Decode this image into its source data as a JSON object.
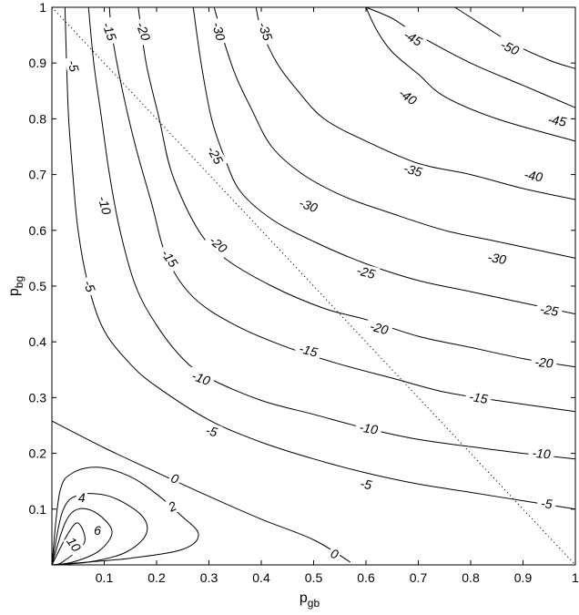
{
  "chart_data": {
    "type": "contour",
    "xlabel": "p",
    "xlabel_sub": "gb",
    "ylabel": "p",
    "ylabel_sub": "bg",
    "xlim": [
      0,
      1
    ],
    "ylim": [
      0,
      1
    ],
    "xticks": [
      {
        "v": 0.1,
        "label": "0.1"
      },
      {
        "v": 0.2,
        "label": "0.2"
      },
      {
        "v": 0.3,
        "label": "0.3"
      },
      {
        "v": 0.4,
        "label": "0.4"
      },
      {
        "v": 0.5,
        "label": "0.5"
      },
      {
        "v": 0.6,
        "label": "0.6"
      },
      {
        "v": 0.7,
        "label": "0.7"
      },
      {
        "v": 0.8,
        "label": "0.8"
      },
      {
        "v": 0.9,
        "label": "0.9"
      },
      {
        "v": 1.0,
        "label": "1"
      }
    ],
    "yticks": [
      {
        "v": 0.1,
        "label": "0.1"
      },
      {
        "v": 0.2,
        "label": "0.2"
      },
      {
        "v": 0.3,
        "label": "0.3"
      },
      {
        "v": 0.4,
        "label": "0.4"
      },
      {
        "v": 0.5,
        "label": "0.5"
      },
      {
        "v": 0.6,
        "label": "0.6"
      },
      {
        "v": 0.7,
        "label": "0.7"
      },
      {
        "v": 0.8,
        "label": "0.8"
      },
      {
        "v": 0.9,
        "label": "0.9"
      },
      {
        "v": 1.0,
        "label": "1"
      }
    ],
    "reference_line": {
      "style": "dotted",
      "points": [
        [
          0,
          1
        ],
        [
          1,
          0
        ]
      ]
    },
    "contours": [
      {
        "level": 10,
        "points": [
          [
            0.0,
            0.0
          ],
          [
            0.03,
            0.055
          ],
          [
            0.05,
            0.075
          ],
          [
            0.062,
            0.04
          ],
          [
            0.02,
            0.005
          ],
          [
            0.0,
            0.0
          ]
        ],
        "labels": [
          {
            "text": "10",
            "x": 0.042,
            "y": 0.037,
            "angle": -55
          }
        ]
      },
      {
        "level": 6,
        "points": [
          [
            0.0,
            0.0
          ],
          [
            0.025,
            0.075
          ],
          [
            0.05,
            0.1
          ],
          [
            0.085,
            0.093
          ],
          [
            0.115,
            0.06
          ],
          [
            0.09,
            0.025
          ],
          [
            0.04,
            0.005
          ],
          [
            0.0,
            0.0
          ]
        ],
        "labels": [
          {
            "text": "6",
            "x": 0.087,
            "y": 0.062,
            "angle": 0
          }
        ]
      },
      {
        "level": 4,
        "points": [
          [
            0.0,
            0.0
          ],
          [
            0.02,
            0.095
          ],
          [
            0.05,
            0.125
          ],
          [
            0.11,
            0.123
          ],
          [
            0.17,
            0.09
          ],
          [
            0.18,
            0.055
          ],
          [
            0.14,
            0.022
          ],
          [
            0.07,
            0.005
          ],
          [
            0.0,
            0.0
          ]
        ],
        "labels": [
          {
            "text": "4",
            "x": 0.057,
            "y": 0.121,
            "angle": 0
          }
        ]
      },
      {
        "level": 2,
        "points": [
          [
            0.0,
            0.0
          ],
          [
            0.015,
            0.13
          ],
          [
            0.04,
            0.165
          ],
          [
            0.09,
            0.175
          ],
          [
            0.15,
            0.158
          ],
          [
            0.2,
            0.127
          ],
          [
            0.245,
            0.09
          ],
          [
            0.28,
            0.055
          ],
          [
            0.25,
            0.028
          ],
          [
            0.15,
            0.012
          ],
          [
            0.04,
            0.003
          ],
          [
            0.0,
            0.0
          ]
        ],
        "labels": [
          {
            "text": "2",
            "x": 0.23,
            "y": 0.105,
            "angle": 25
          }
        ]
      },
      {
        "level": 0,
        "points": [
          [
            0.0,
            0.258
          ],
          [
            0.1,
            0.21
          ],
          [
            0.2,
            0.166
          ],
          [
            0.3,
            0.123
          ],
          [
            0.4,
            0.082
          ],
          [
            0.5,
            0.045
          ],
          [
            0.57,
            0.005
          ]
        ],
        "labels": [
          {
            "text": "0",
            "x": 0.235,
            "y": 0.155,
            "angle": -20
          },
          {
            "text": "0",
            "x": 0.54,
            "y": 0.02,
            "angle": -20
          }
        ]
      },
      {
        "level": -5,
        "points": [
          [
            0.025,
            1.0
          ],
          [
            0.028,
            0.9
          ],
          [
            0.032,
            0.8
          ],
          [
            0.04,
            0.7
          ],
          [
            0.05,
            0.6
          ],
          [
            0.07,
            0.5
          ],
          [
            0.1,
            0.42
          ],
          [
            0.15,
            0.36
          ],
          [
            0.2,
            0.32
          ],
          [
            0.3,
            0.26
          ],
          [
            0.4,
            0.22
          ],
          [
            0.5,
            0.19
          ],
          [
            0.6,
            0.165
          ],
          [
            0.7,
            0.145
          ],
          [
            0.8,
            0.13
          ],
          [
            0.9,
            0.115
          ],
          [
            1.0,
            0.1
          ]
        ],
        "labels": [
          {
            "text": "-5",
            "x": 0.041,
            "y": 0.895,
            "angle": -75
          },
          {
            "text": "-5",
            "x": 0.072,
            "y": 0.5,
            "angle": -70
          },
          {
            "text": "-5",
            "x": 0.305,
            "y": 0.24,
            "angle": -15
          },
          {
            "text": "-5",
            "x": 0.6,
            "y": 0.145,
            "angle": -10
          },
          {
            "text": "-5",
            "x": 0.945,
            "y": 0.11,
            "angle": -5
          }
        ]
      },
      {
        "level": -10,
        "points": [
          [
            0.07,
            1.0
          ],
          [
            0.08,
            0.9
          ],
          [
            0.095,
            0.8
          ],
          [
            0.11,
            0.7
          ],
          [
            0.13,
            0.6
          ],
          [
            0.16,
            0.5
          ],
          [
            0.2,
            0.43
          ],
          [
            0.25,
            0.37
          ],
          [
            0.3,
            0.335
          ],
          [
            0.4,
            0.295
          ],
          [
            0.5,
            0.27
          ],
          [
            0.6,
            0.245
          ],
          [
            0.7,
            0.225
          ],
          [
            0.8,
            0.212
          ],
          [
            0.9,
            0.2
          ],
          [
            1.0,
            0.19
          ]
        ],
        "labels": [
          {
            "text": "-10",
            "x": 0.101,
            "y": 0.645,
            "angle": -75
          },
          {
            "text": "-10",
            "x": 0.285,
            "y": 0.335,
            "angle": -20
          },
          {
            "text": "-10",
            "x": 0.605,
            "y": 0.245,
            "angle": -10
          },
          {
            "text": "-10",
            "x": 0.935,
            "y": 0.2,
            "angle": -5
          }
        ]
      },
      {
        "level": -15,
        "points": [
          [
            0.11,
            1.0
          ],
          [
            0.115,
            0.95
          ],
          [
            0.135,
            0.85
          ],
          [
            0.16,
            0.75
          ],
          [
            0.19,
            0.65
          ],
          [
            0.22,
            0.55
          ],
          [
            0.27,
            0.48
          ],
          [
            0.35,
            0.43
          ],
          [
            0.45,
            0.39
          ],
          [
            0.55,
            0.36
          ],
          [
            0.65,
            0.335
          ],
          [
            0.75,
            0.31
          ],
          [
            0.85,
            0.295
          ],
          [
            1.0,
            0.275
          ]
        ],
        "labels": [
          {
            "text": "-15",
            "x": 0.11,
            "y": 0.957,
            "angle": -70
          },
          {
            "text": "-15",
            "x": 0.225,
            "y": 0.55,
            "angle": -55
          },
          {
            "text": "-15",
            "x": 0.49,
            "y": 0.385,
            "angle": -15
          },
          {
            "text": "-15",
            "x": 0.815,
            "y": 0.3,
            "angle": -10
          }
        ]
      },
      {
        "level": -20,
        "points": [
          [
            0.165,
            1.0
          ],
          [
            0.18,
            0.9
          ],
          [
            0.205,
            0.8
          ],
          [
            0.23,
            0.7
          ],
          [
            0.28,
            0.6
          ],
          [
            0.33,
            0.55
          ],
          [
            0.42,
            0.5
          ],
          [
            0.52,
            0.46
          ],
          [
            0.6,
            0.44
          ],
          [
            0.7,
            0.41
          ],
          [
            0.8,
            0.39
          ],
          [
            0.9,
            0.37
          ],
          [
            1.0,
            0.355
          ]
        ],
        "labels": [
          {
            "text": "-20",
            "x": 0.175,
            "y": 0.957,
            "angle": -70
          },
          {
            "text": "-20",
            "x": 0.318,
            "y": 0.575,
            "angle": -40
          },
          {
            "text": "-20",
            "x": 0.625,
            "y": 0.425,
            "angle": -15
          },
          {
            "text": "-20",
            "x": 0.94,
            "y": 0.363,
            "angle": -5
          }
        ]
      },
      {
        "level": -25,
        "points": [
          [
            0.27,
            1.0
          ],
          [
            0.285,
            0.9
          ],
          [
            0.305,
            0.8
          ],
          [
            0.33,
            0.73
          ],
          [
            0.36,
            0.67
          ],
          [
            0.42,
            0.62
          ],
          [
            0.5,
            0.58
          ],
          [
            0.6,
            0.54
          ],
          [
            0.7,
            0.51
          ],
          [
            0.8,
            0.49
          ],
          [
            0.9,
            0.47
          ],
          [
            1.0,
            0.45
          ]
        ],
        "labels": [
          {
            "text": "-25",
            "x": 0.312,
            "y": 0.735,
            "angle": -60
          },
          {
            "text": "-25",
            "x": 0.6,
            "y": 0.525,
            "angle": -15
          },
          {
            "text": "-25",
            "x": 0.95,
            "y": 0.457,
            "angle": -10
          }
        ]
      },
      {
        "level": -30,
        "points": [
          [
            0.31,
            1.0
          ],
          [
            0.325,
            0.95
          ],
          [
            0.35,
            0.88
          ],
          [
            0.38,
            0.82
          ],
          [
            0.42,
            0.75
          ],
          [
            0.48,
            0.7
          ],
          [
            0.56,
            0.66
          ],
          [
            0.65,
            0.63
          ],
          [
            0.75,
            0.6
          ],
          [
            0.85,
            0.58
          ],
          [
            1.0,
            0.55
          ]
        ],
        "labels": [
          {
            "text": "-30",
            "x": 0.319,
            "y": 0.957,
            "angle": -75
          },
          {
            "text": "-30",
            "x": 0.49,
            "y": 0.645,
            "angle": -20
          },
          {
            "text": "-30",
            "x": 0.85,
            "y": 0.55,
            "angle": -10
          }
        ]
      },
      {
        "level": -35,
        "points": [
          [
            0.39,
            1.0
          ],
          [
            0.4,
            0.96
          ],
          [
            0.43,
            0.9
          ],
          [
            0.47,
            0.85
          ],
          [
            0.52,
            0.8
          ],
          [
            0.6,
            0.76
          ],
          [
            0.7,
            0.72
          ],
          [
            0.8,
            0.7
          ],
          [
            0.9,
            0.675
          ],
          [
            1.0,
            0.655
          ]
        ],
        "labels": [
          {
            "text": "-35",
            "x": 0.408,
            "y": 0.957,
            "angle": -70
          },
          {
            "text": "-35",
            "x": 0.69,
            "y": 0.708,
            "angle": -15
          }
        ]
      },
      {
        "level": -40,
        "points": [
          [
            0.6,
            1.0
          ],
          [
            0.62,
            0.96
          ],
          [
            0.65,
            0.92
          ],
          [
            0.7,
            0.88
          ],
          [
            0.75,
            0.84
          ],
          [
            0.85,
            0.8
          ],
          [
            1.0,
            0.76
          ]
        ],
        "labels": [
          {
            "text": "-40",
            "x": 0.68,
            "y": 0.84,
            "angle": -35
          },
          {
            "text": "-40",
            "x": 0.92,
            "y": 0.698,
            "angle": -10
          }
        ]
      },
      {
        "level": -45,
        "points": [
          [
            0.6,
            1.0
          ],
          [
            0.65,
            0.98
          ],
          [
            0.7,
            0.95
          ],
          [
            0.8,
            0.9
          ],
          [
            0.9,
            0.86
          ],
          [
            1.0,
            0.82
          ]
        ],
        "labels": [
          {
            "text": "-45",
            "x": 0.69,
            "y": 0.945,
            "angle": -30
          },
          {
            "text": "-45",
            "x": 0.965,
            "y": 0.797,
            "angle": -10
          }
        ]
      },
      {
        "level": -50,
        "points": [
          [
            0.77,
            1.0
          ],
          [
            0.82,
            0.97
          ],
          [
            0.88,
            0.935
          ],
          [
            0.95,
            0.905
          ],
          [
            1.0,
            0.89
          ]
        ],
        "labels": [
          {
            "text": "-50",
            "x": 0.875,
            "y": 0.928,
            "angle": -25
          }
        ]
      }
    ]
  }
}
